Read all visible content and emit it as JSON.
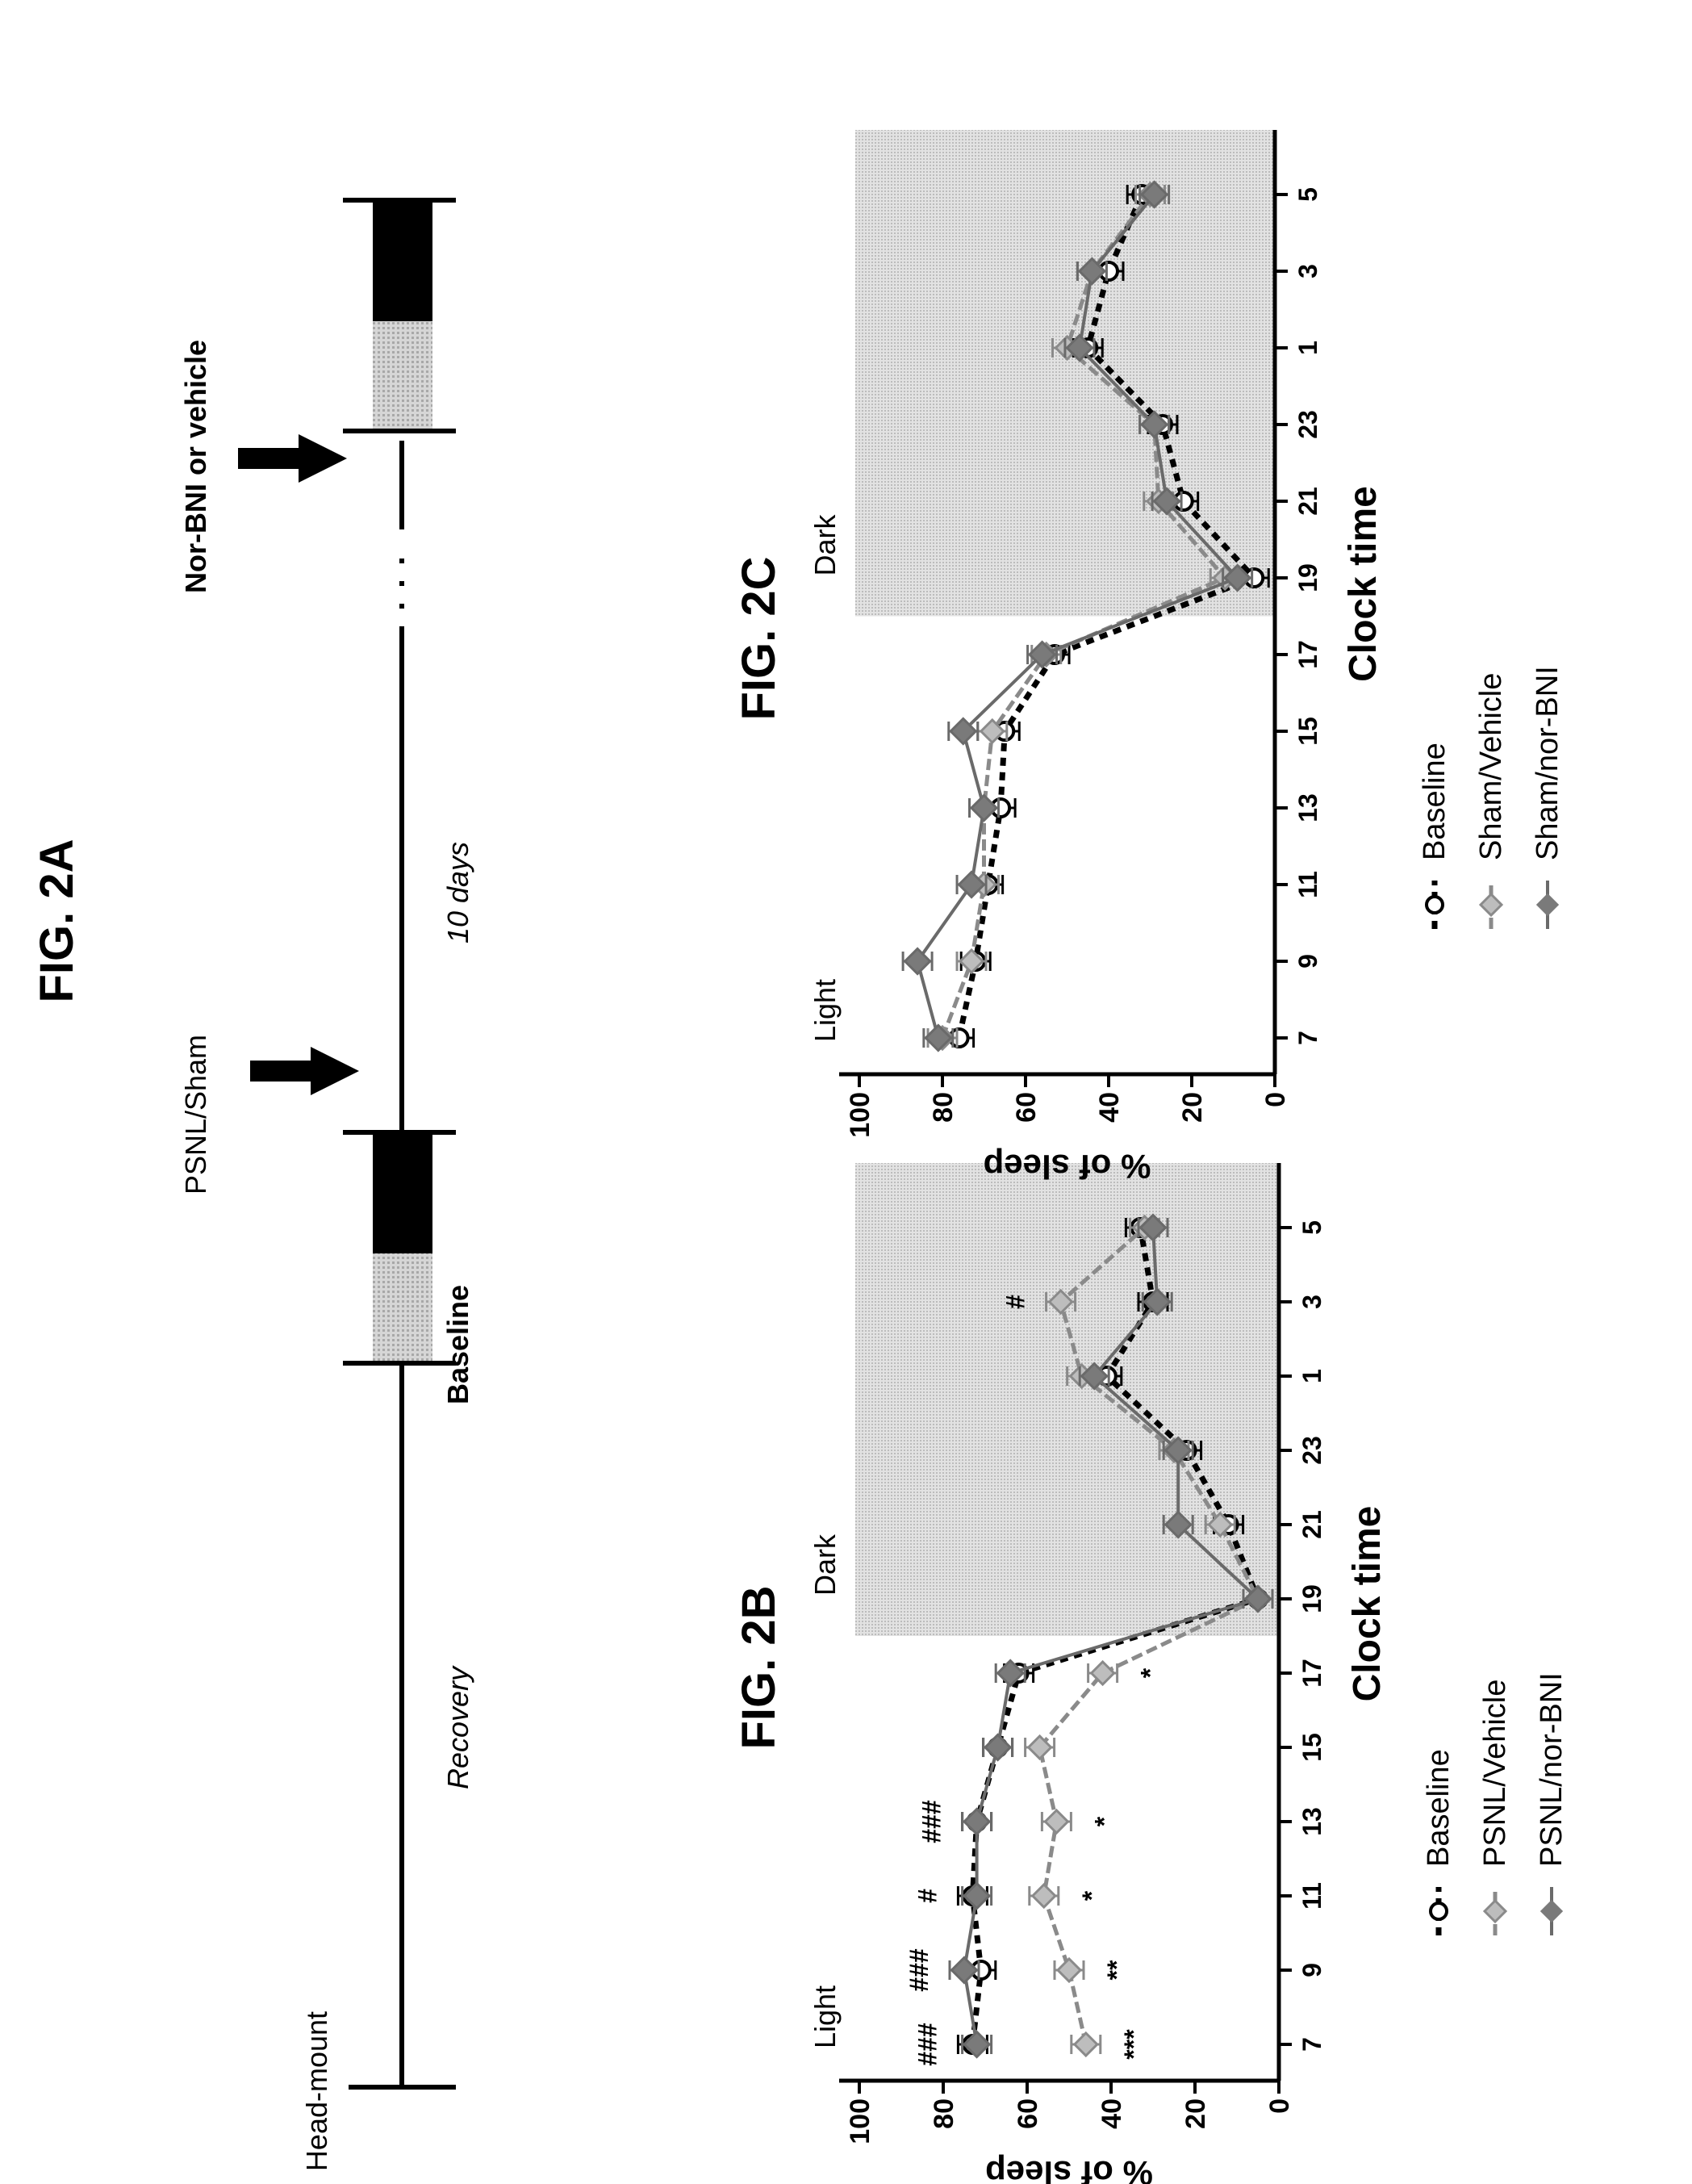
{
  "figures": {
    "fig2a": {
      "title": "FIG. 2A",
      "labels": {
        "head_mount": "Head-mount",
        "recovery": "Recovery",
        "baseline": "Baseline",
        "psnl_sham": "PSNL/Sham",
        "ten_days": "10 days",
        "norbni": "Nor-BNI or vehicle"
      }
    },
    "fig2b": {
      "title": "FIG. 2B"
    },
    "fig2c": {
      "title": "FIG. 2C"
    }
  },
  "colors": {
    "ink": "#000000",
    "shade": "#d4d4d4",
    "light_gray": "#9a9a9a",
    "mid_gray": "#6a6a6a"
  },
  "chart_data": [
    {
      "id": "fig2b",
      "type": "line",
      "title": "FIG. 2B",
      "xlabel": "Clock time",
      "ylabel": "% of sleep",
      "categories": [
        "7",
        "9",
        "11",
        "13",
        "15",
        "17",
        "19",
        "21",
        "23",
        "1",
        "3",
        "5"
      ],
      "ylim": [
        0,
        100
      ],
      "yticks": [
        "0",
        "20",
        "40",
        "60",
        "80",
        "100"
      ],
      "regions": [
        {
          "label": "Light",
          "shaded": false
        },
        {
          "label": "Dark",
          "shaded": true,
          "start_category": "19"
        }
      ],
      "series": [
        {
          "name": "Baseline",
          "values": [
            73,
            71,
            73,
            72,
            67,
            62,
            5,
            12,
            22,
            41,
            30,
            33
          ]
        },
        {
          "name": "PSNL/Vehicle",
          "values": [
            46,
            50,
            56,
            53,
            57,
            42,
            5,
            14,
            25,
            47,
            52,
            32
          ]
        },
        {
          "name": "PSNL/nor-BNI",
          "values": [
            72,
            75,
            72,
            72,
            67,
            64,
            5,
            24,
            24,
            44,
            29,
            30
          ]
        }
      ],
      "annotations": [
        {
          "category": "7",
          "text": "###"
        },
        {
          "category": "7",
          "text": "***"
        },
        {
          "category": "9",
          "text": "###"
        },
        {
          "category": "9",
          "text": "**"
        },
        {
          "category": "11",
          "text": "#"
        },
        {
          "category": "11",
          "text": "*"
        },
        {
          "category": "13",
          "text": "###"
        },
        {
          "category": "13",
          "text": "*"
        },
        {
          "category": "17",
          "text": "*"
        },
        {
          "category": "3",
          "text": "#"
        }
      ]
    },
    {
      "id": "fig2c",
      "type": "line",
      "title": "FIG. 2C",
      "xlabel": "Clock time",
      "ylabel": "% of sleep",
      "categories": [
        "7",
        "9",
        "11",
        "13",
        "15",
        "17",
        "19",
        "21",
        "23",
        "1",
        "3",
        "5"
      ],
      "ylim": [
        0,
        100
      ],
      "yticks": [
        "0",
        "20",
        "40",
        "60",
        "80",
        "100"
      ],
      "regions": [
        {
          "label": "Light",
          "shaded": false
        },
        {
          "label": "Dark",
          "shaded": true,
          "start_category": "19"
        }
      ],
      "series": [
        {
          "name": "Baseline",
          "values": [
            76,
            72,
            69,
            66,
            65,
            53,
            5,
            22,
            27,
            45,
            40,
            32
          ]
        },
        {
          "name": "Sham/Vehicle",
          "values": [
            80,
            73,
            70,
            70,
            68,
            55,
            12,
            28,
            29,
            50,
            44,
            30
          ]
        },
        {
          "name": "Sham/nor-BNI",
          "values": [
            81,
            86,
            73,
            70,
            75,
            56,
            9,
            26,
            29,
            47,
            44,
            29
          ]
        }
      ]
    }
  ]
}
